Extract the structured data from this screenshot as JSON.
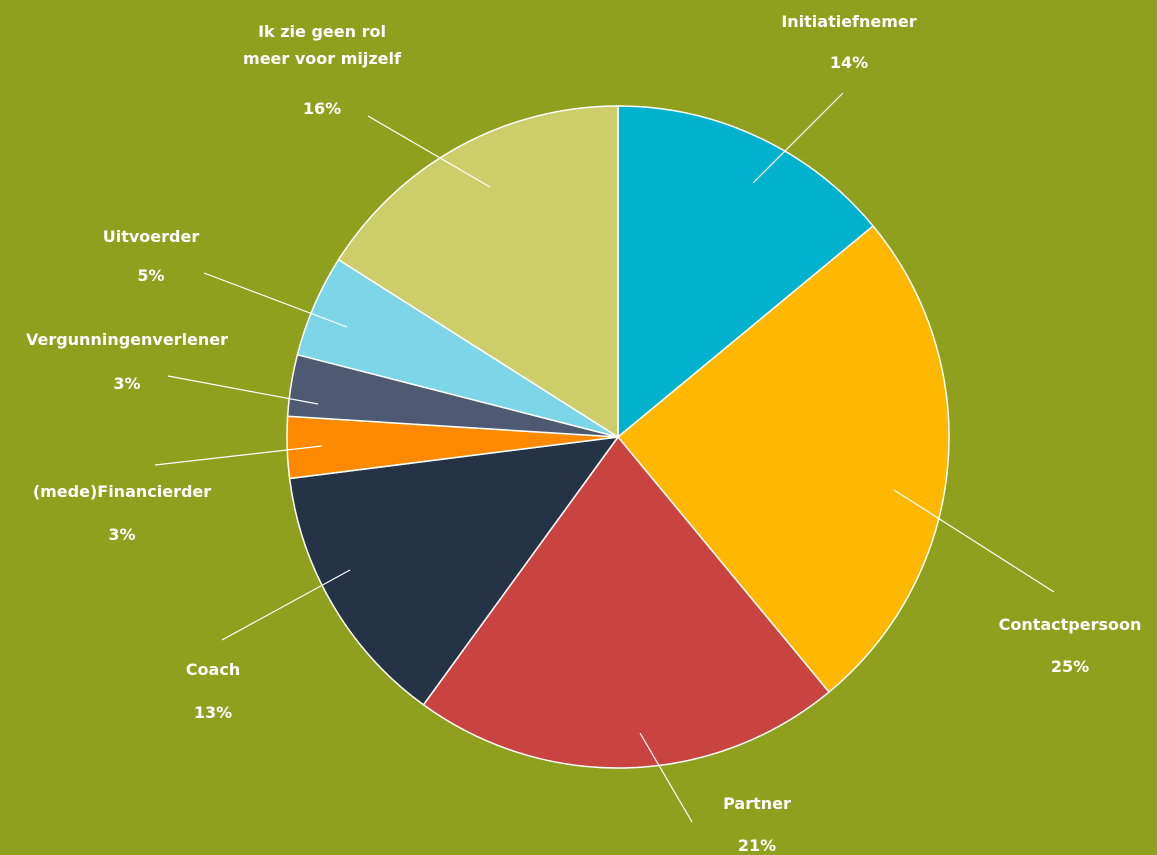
{
  "chart_data": {
    "type": "pie",
    "title": "",
    "slices": [
      {
        "label": [
          "Initiatiefnemer"
        ],
        "pct_label": "14%",
        "value": 14,
        "color": "#00b2cd"
      },
      {
        "label": [
          "Contactpersoon"
        ],
        "pct_label": "25%",
        "value": 25,
        "color": "#ffb700"
      },
      {
        "label": [
          "Partner"
        ],
        "pct_label": "21%",
        "value": 21,
        "color": "#c94440"
      },
      {
        "label": [
          "Coach"
        ],
        "pct_label": "13%",
        "value": 13,
        "color": "#243346"
      },
      {
        "label": [
          "(mede)Financierder"
        ],
        "pct_label": "3%",
        "value": 3,
        "color": "#ff8a00"
      },
      {
        "label": [
          "Vergunningenverlener"
        ],
        "pct_label": "3%",
        "value": 3,
        "color": "#4d5a72"
      },
      {
        "label": [
          "Uitvoerder"
        ],
        "pct_label": "5%",
        "value": 5,
        "color": "#7dd6e8"
      },
      {
        "label": [
          "Ik zie geen rol",
          "meer voor mijzelf"
        ],
        "pct_label": "16%",
        "value": 16,
        "color": "#cdcd6a"
      }
    ]
  }
}
